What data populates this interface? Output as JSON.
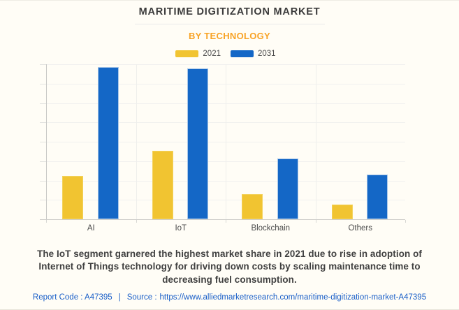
{
  "header": {
    "title": "MARITIME DIGITIZATION MARKET",
    "subtitle": "BY TECHNOLOGY"
  },
  "chart_data": {
    "type": "bar",
    "title": "MARITIME DIGITIZATION MARKET",
    "subtitle": "BY TECHNOLOGY",
    "categories": [
      "AI",
      "IoT",
      "Blockchain",
      "Others"
    ],
    "series": [
      {
        "name": "2021",
        "color": "#F1C431",
        "values": [
          2.25,
          3.55,
          1.3,
          0.75
        ]
      },
      {
        "name": "2031",
        "color": "#1467C6",
        "values": [
          7.85,
          7.8,
          3.15,
          2.3
        ]
      }
    ],
    "xlabel": "",
    "ylabel": "",
    "ylim": [
      0,
      8
    ],
    "y_tick_labels": [],
    "grid": true,
    "legend_position": "top"
  },
  "caption": {
    "lines": [
      "The IoT segment garnered the highest market share in 2021 due to rise in adoption of",
      "Internet of Things technology for driving down costs by scaling maintenance time to",
      "decreasing fuel consumption."
    ],
    "text": "The IoT segment garnered the highest market share in 2021 due to rise in adoption of Internet of Things technology for driving down costs by scaling maintenance time to decreasing fuel consumption."
  },
  "footer": {
    "report_code": "Report Code : A47395",
    "separator": "|",
    "source_label": "Source :",
    "source_url": "https://www.alliedmarketresearch.com/maritime-digitization-market-A47395"
  },
  "colors": {
    "background": "#FFFDF6",
    "accent_orange": "#F8A326",
    "bar_2021": "#F1C431",
    "bar_2031": "#1467C6",
    "footer_blue": "#1A5FC8",
    "title_text": "#3B3B3B",
    "caption_text": "#3F3F3F"
  }
}
